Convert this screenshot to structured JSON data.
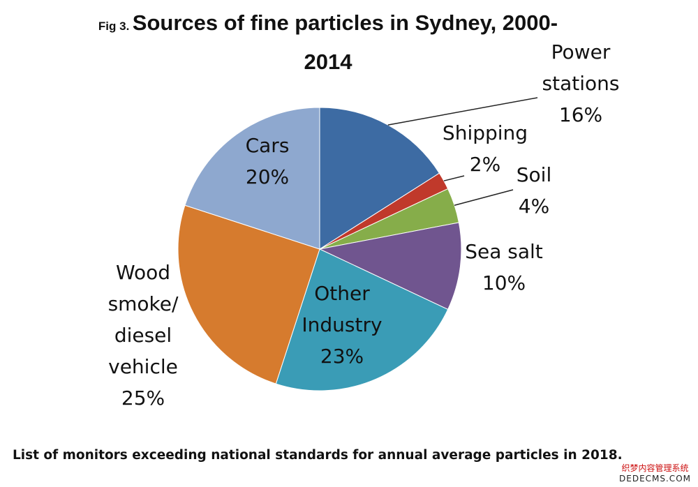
{
  "title_prefix": "Fig 3.",
  "title": "Sources of fine particles in Sydney, 2000-2014",
  "caption": "List of monitors exceeding national standards for annual average particles in 2018.",
  "watermark": {
    "line1": "织梦内容管理系统",
    "line2": "DEDECMS.COM"
  },
  "chart_data": {
    "type": "pie",
    "title": "Sources of fine particles in Sydney, 2000-2014",
    "start_angle_deg": 0,
    "direction": "clockwise",
    "slices": [
      {
        "label": "Power stations",
        "value": 16,
        "display": "16%",
        "color": "#3d6ba3"
      },
      {
        "label": "Shipping",
        "value": 2,
        "display": "2%",
        "color": "#c0392b"
      },
      {
        "label": "Soil",
        "value": 4,
        "display": "4%",
        "color": "#86ad4a"
      },
      {
        "label": "Sea salt",
        "value": 10,
        "display": "10%",
        "color": "#70558f"
      },
      {
        "label": "Other Industry",
        "value": 23,
        "display": "23%",
        "color": "#3a9cb6"
      },
      {
        "label": "Wood smoke/ diesel vehicle",
        "value": 25,
        "display": "25%",
        "color": "#d67b2e"
      },
      {
        "label": "Cars",
        "value": 20,
        "display": "20%",
        "color": "#8ea8cf"
      }
    ]
  }
}
